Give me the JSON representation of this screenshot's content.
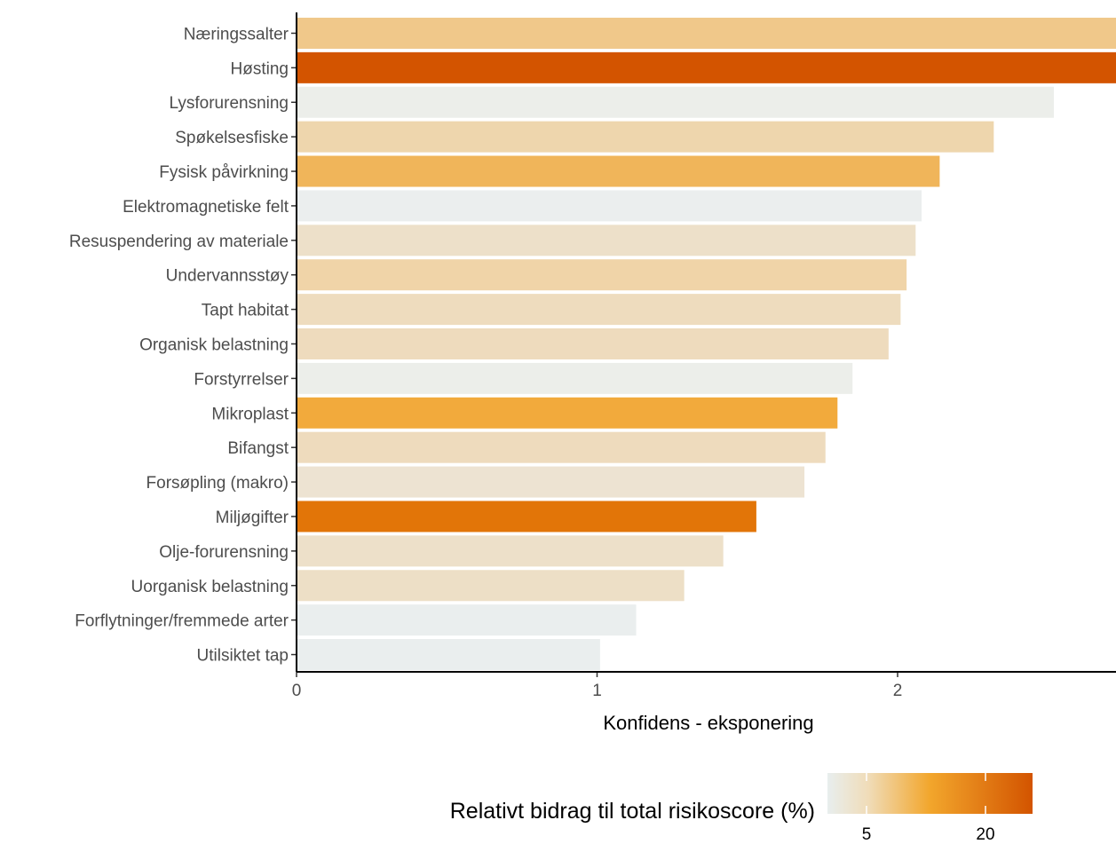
{
  "chart_data": {
    "type": "bar",
    "orientation": "horizontal",
    "title": "",
    "xlabel": "Konfidens - eksponering",
    "ylabel": "",
    "xlim": [
      0,
      2.75
    ],
    "xticks": [
      0,
      1,
      2
    ],
    "grid": false,
    "legend": {
      "title": "Relativt bidrag til total risikoscore (%)",
      "placement": "bottom-right",
      "type": "colorbar",
      "ticks": [
        5,
        20
      ],
      "colors": [
        "#e8eeee",
        "#f0dcb8",
        "#f2a62c",
        "#d35400"
      ]
    },
    "categories": [
      "Næringssalter",
      "Høsting",
      "Lysforurensning",
      "Spøkelsesfiske",
      "Fysisk påvirkning",
      "Elektromagnetiske felt",
      "Resuspendering av materiale",
      "Undervannsstøy",
      "Tapt habitat",
      "Organisk belastning",
      "Forstyrrelser",
      "Mikroplast",
      "Bifangst",
      "Forsøpling (makro)",
      "Miljøgifter",
      "Olje-forurensning",
      "Uorganisk belastning",
      "Forflytninger/fremmede arter",
      "Utilsiktet tap"
    ],
    "values": [
      2.75,
      2.73,
      2.52,
      2.32,
      2.14,
      2.08,
      2.06,
      2.03,
      2.01,
      1.97,
      1.85,
      1.8,
      1.76,
      1.69,
      1.53,
      1.42,
      1.29,
      1.13,
      1.01
    ],
    "bar_colors": [
      "#f0c88a",
      "#d35400",
      "#eceeea",
      "#eed6ad",
      "#f0b55a",
      "#ebeeee",
      "#ede0c9",
      "#f0d4a8",
      "#eedcbe",
      "#eedbbd",
      "#eceeea",
      "#f2aa3c",
      "#eedbbd",
      "#ede3d2",
      "#e27508",
      "#ede0c9",
      "#eddfc6",
      "#eaeeee",
      "#eaeeee"
    ]
  }
}
